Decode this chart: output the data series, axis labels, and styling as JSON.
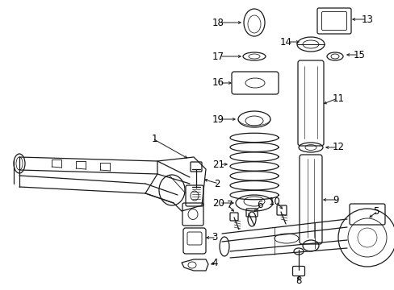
{
  "background_color": "#ffffff",
  "fig_width": 4.89,
  "fig_height": 3.6,
  "dpi": 100,
  "line_color": "#1a1a1a",
  "line_width": 0.9,
  "label_fontsize": 8.5
}
